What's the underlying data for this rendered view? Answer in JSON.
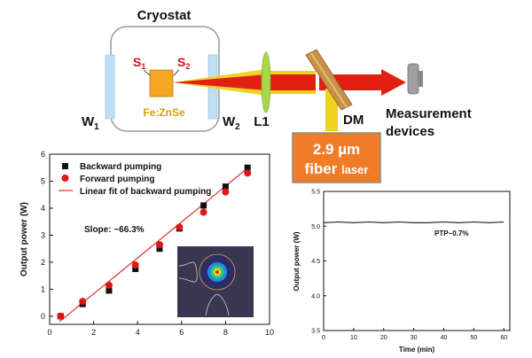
{
  "setup": {
    "cryostat_label": "Cryostat",
    "s1_label": "S",
    "s1_sub": "1",
    "s2_label": "S",
    "s2_sub": "2",
    "crystal_label": "Fe:ZnSe",
    "w1_label": "W",
    "w1_sub": "1",
    "w2_label": "W",
    "w2_sub": "2",
    "lens_label": "L1",
    "dm_label": "DM",
    "measurement_line1": "Measurement",
    "measurement_line2": "devices",
    "laser_line1": "2.9 µm",
    "laser_line2_main": "fiber ",
    "laser_line2_small": "laser"
  },
  "colors": {
    "laser_box": "#f07c28",
    "crystal": "#f5a623",
    "beam_red": "#e02010",
    "beam_yellow": "#f0d020",
    "lens": "#a8d84a",
    "window": "#bfe0f2",
    "red_text": "#d0101a",
    "fit_line": "#e03030"
  },
  "chart_data": [
    {
      "type": "scatter",
      "xlabel": "",
      "ylabel": "Output power (W)",
      "xlim": [
        0,
        10
      ],
      "ylim": [
        -0.3,
        6
      ],
      "x_ticks": [
        0,
        2,
        4,
        6,
        8,
        10
      ],
      "y_ticks": [
        0,
        1,
        2,
        3,
        4,
        5,
        6
      ],
      "annotation": "Slope: ~66.3%",
      "legend_position": "top-left",
      "series": [
        {
          "name": "Backward pumping",
          "marker": "square",
          "color": "#111111",
          "x": [
            0.5,
            1.5,
            2.7,
            3.9,
            5.0,
            5.9,
            7.0,
            8.0,
            9.0
          ],
          "y": [
            0.0,
            0.45,
            0.95,
            1.75,
            2.5,
            3.25,
            4.1,
            4.8,
            5.5
          ]
        },
        {
          "name": "Forward pumping",
          "marker": "circle",
          "color": "#e01515",
          "x": [
            0.5,
            1.5,
            2.7,
            3.9,
            5.0,
            5.9,
            7.0,
            8.0,
            9.0
          ],
          "y": [
            0.0,
            0.55,
            1.15,
            1.9,
            2.65,
            3.3,
            3.85,
            4.6,
            5.3
          ]
        },
        {
          "name": "Linear fit of backward pumping",
          "kind": "line",
          "color": "#e03030",
          "x": [
            0.45,
            9.1
          ],
          "y": [
            -0.2,
            5.55
          ]
        }
      ],
      "inset": "beam profile image"
    },
    {
      "type": "line",
      "xlabel": "Time (min)",
      "ylabel": "Output power (W)",
      "xlim": [
        0,
        62
      ],
      "ylim": [
        3.5,
        5.5
      ],
      "x_ticks": [
        0,
        10,
        20,
        30,
        40,
        50,
        60
      ],
      "y_ticks": [
        3.5,
        4.0,
        4.5,
        5.0,
        5.5
      ],
      "annotation": "PTP~0.7%",
      "series": [
        {
          "name": "",
          "color": "#111111",
          "x": [
            0,
            5,
            10,
            15,
            20,
            25,
            30,
            35,
            40,
            45,
            50,
            55,
            60
          ],
          "y": [
            5.05,
            5.06,
            5.05,
            5.06,
            5.05,
            5.06,
            5.05,
            5.05,
            5.06,
            5.05,
            5.06,
            5.05,
            5.06
          ]
        }
      ]
    }
  ]
}
